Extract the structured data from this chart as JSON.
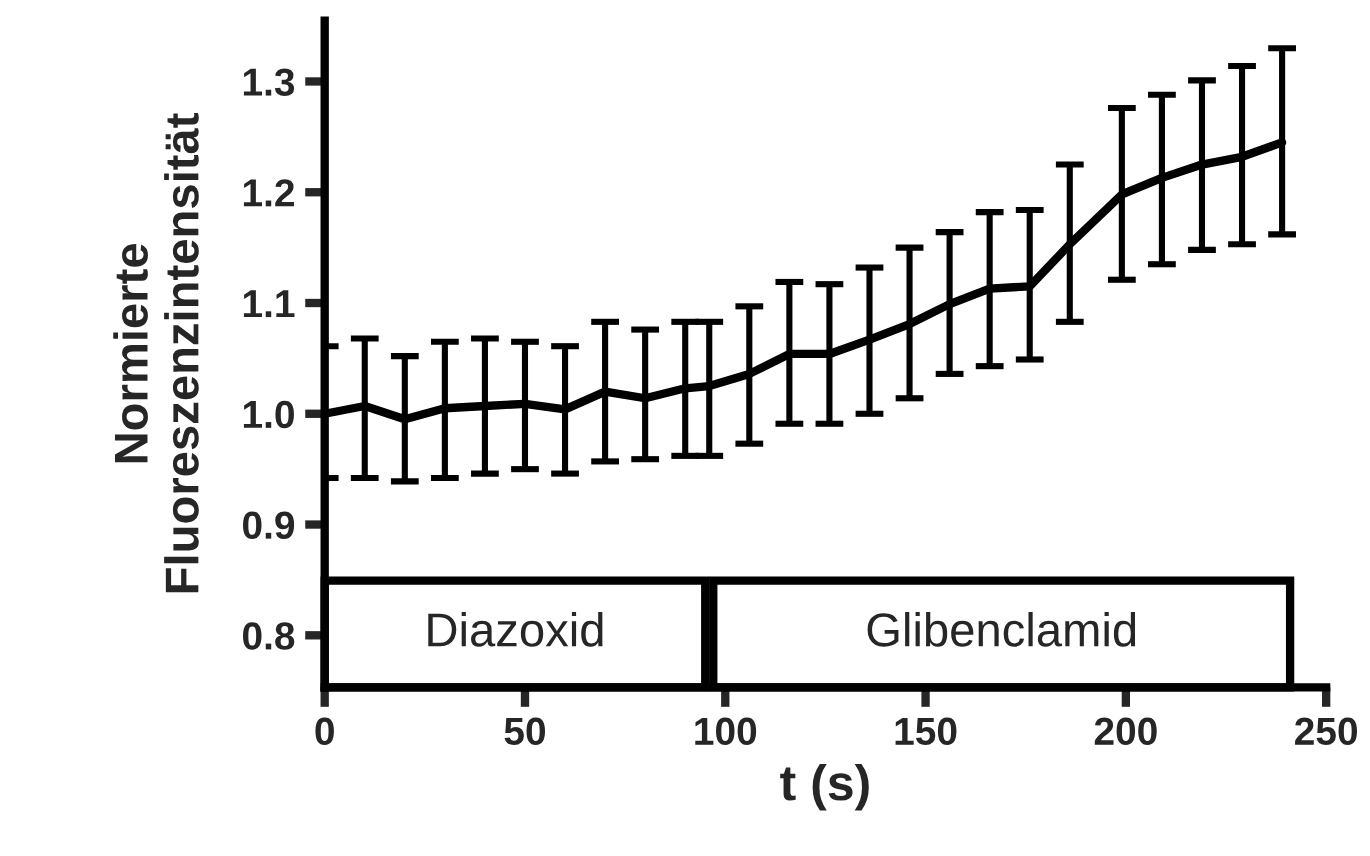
{
  "chart_data": {
    "type": "line",
    "xlabel": "t (s)",
    "ylabel": "Normierte\nFluoreszenzintensität",
    "x": [
      0,
      10,
      20,
      30,
      40,
      50,
      60,
      70,
      80,
      90,
      96,
      106,
      116,
      126,
      136,
      146,
      156,
      166,
      176,
      186,
      199,
      209,
      219,
      229,
      239
    ],
    "series": [
      {
        "color": "#000000",
        "values": [
          1.0,
          1.007,
          0.995,
          1.005,
          1.007,
          1.009,
          1.004,
          1.02,
          1.014,
          1.023,
          1.025,
          1.036,
          1.054,
          1.054,
          1.067,
          1.081,
          1.099,
          1.113,
          1.115,
          1.153,
          1.198,
          1.213,
          1.225,
          1.232,
          1.245
        ],
        "errors": [
          [
            0.942,
            1.061
          ],
          [
            0.942,
            1.068
          ],
          [
            0.939,
            1.052
          ],
          [
            0.942,
            1.065
          ],
          [
            0.946,
            1.068
          ],
          [
            0.95,
            1.065
          ],
          [
            0.946,
            1.061
          ],
          [
            0.957,
            1.083
          ],
          [
            0.959,
            1.076
          ],
          [
            0.962,
            1.083
          ],
          [
            0.962,
            1.083
          ],
          [
            0.973,
            1.097
          ],
          [
            0.991,
            1.119
          ],
          [
            0.991,
            1.117
          ],
          [
            1.0,
            1.132
          ],
          [
            1.014,
            1.15
          ],
          [
            1.036,
            1.164
          ],
          [
            1.043,
            1.182
          ],
          [
            1.049,
            1.184
          ],
          [
            1.083,
            1.225
          ],
          [
            1.121,
            1.276
          ],
          [
            1.135,
            1.288
          ],
          [
            1.148,
            1.301
          ],
          [
            1.153,
            1.314
          ],
          [
            1.162,
            1.33
          ]
        ]
      }
    ],
    "xlim": [
      0,
      250
    ],
    "xticks": [
      0,
      50,
      100,
      150,
      200,
      250
    ],
    "ylim": [
      0.753,
      1.355
    ],
    "yticks": [
      0.8,
      0.9,
      {
        "value": 1.0,
        "label": "1.0"
      },
      1.1,
      1.2,
      1.3
    ],
    "bands": [
      {
        "axis": "x",
        "from": 0,
        "to": 95,
        "label": "Diazoxid",
        "color": "#ffffff"
      },
      {
        "axis": "x",
        "from": 97,
        "to": 241,
        "label": "Glibenclamid",
        "color": "#ffffff"
      }
    ],
    "marker": "none",
    "line_style": "solid",
    "grid": false,
    "legend": false
  }
}
